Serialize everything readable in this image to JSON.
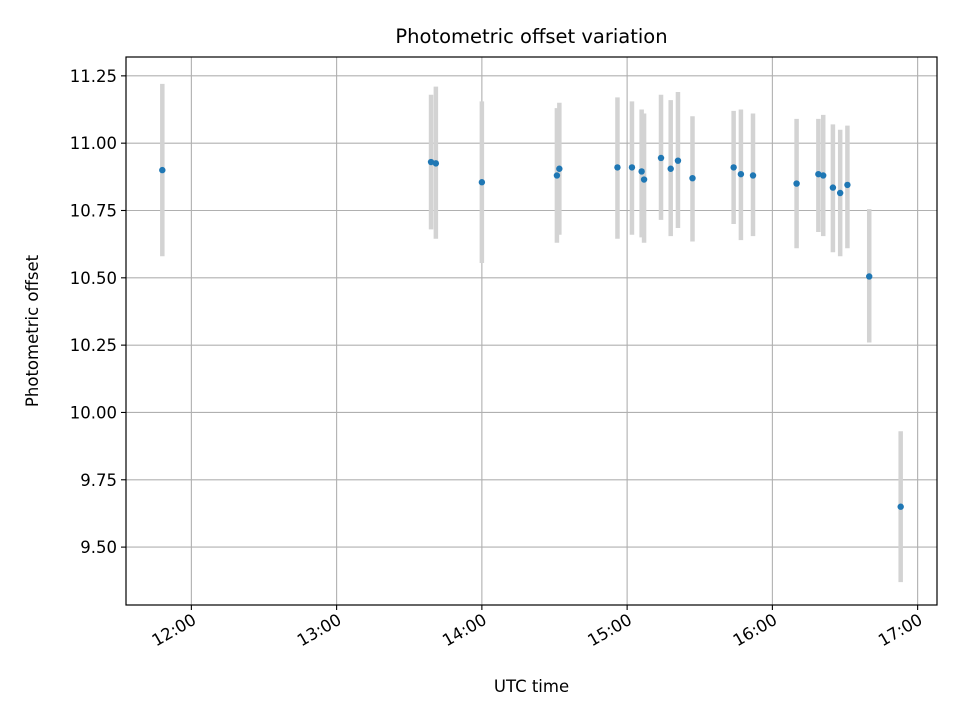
{
  "chart_data": {
    "type": "scatter",
    "title": "Photometric offset variation",
    "xlabel": "UTC time",
    "ylabel": "Photometric offset",
    "x_axis": {
      "type": "time",
      "range": [
        "11:33",
        "17:08"
      ],
      "ticks": [
        "12:00",
        "13:00",
        "14:00",
        "15:00",
        "16:00",
        "17:00"
      ]
    },
    "y_axis": {
      "range": [
        9.285,
        11.32
      ],
      "ticks": [
        "9.50",
        "9.75",
        "10.00",
        "10.25",
        "10.50",
        "10.75",
        "11.00",
        "11.25"
      ]
    },
    "grid": true,
    "colors": {
      "point": "#1f77b4",
      "error_bar": "#d3d3d3",
      "grid": "#b0b0b0"
    },
    "series": [
      {
        "points": [
          {
            "x": "11:48",
            "y": 10.9,
            "y_low": 10.58,
            "y_high": 11.22
          },
          {
            "x": "13:39",
            "y": 10.93,
            "y_low": 10.68,
            "y_high": 11.18
          },
          {
            "x": "13:41",
            "y": 10.925,
            "y_low": 10.645,
            "y_high": 11.21
          },
          {
            "x": "14:00",
            "y": 10.855,
            "y_low": 10.555,
            "y_high": 11.155
          },
          {
            "x": "14:31",
            "y": 10.88,
            "y_low": 10.63,
            "y_high": 11.13
          },
          {
            "x": "14:32",
            "y": 10.905,
            "y_low": 10.66,
            "y_high": 11.15
          },
          {
            "x": "14:56",
            "y": 10.91,
            "y_low": 10.645,
            "y_high": 11.17
          },
          {
            "x": "15:02",
            "y": 10.91,
            "y_low": 10.66,
            "y_high": 11.155
          },
          {
            "x": "15:06",
            "y": 10.895,
            "y_low": 10.65,
            "y_high": 11.125
          },
          {
            "x": "15:07",
            "y": 10.865,
            "y_low": 10.63,
            "y_high": 11.11
          },
          {
            "x": "15:14",
            "y": 10.945,
            "y_low": 10.715,
            "y_high": 11.18
          },
          {
            "x": "15:18",
            "y": 10.905,
            "y_low": 10.655,
            "y_high": 11.16
          },
          {
            "x": "15:21",
            "y": 10.935,
            "y_low": 10.685,
            "y_high": 11.19
          },
          {
            "x": "15:27",
            "y": 10.87,
            "y_low": 10.635,
            "y_high": 11.1
          },
          {
            "x": "15:44",
            "y": 10.91,
            "y_low": 10.7,
            "y_high": 11.12
          },
          {
            "x": "15:47",
            "y": 10.885,
            "y_low": 10.64,
            "y_high": 11.125
          },
          {
            "x": "15:52",
            "y": 10.88,
            "y_low": 10.655,
            "y_high": 11.11
          },
          {
            "x": "16:10",
            "y": 10.85,
            "y_low": 10.61,
            "y_high": 11.09
          },
          {
            "x": "16:19",
            "y": 10.885,
            "y_low": 10.67,
            "y_high": 11.09
          },
          {
            "x": "16:21",
            "y": 10.88,
            "y_low": 10.655,
            "y_high": 11.105
          },
          {
            "x": "16:25",
            "y": 10.835,
            "y_low": 10.595,
            "y_high": 11.07
          },
          {
            "x": "16:28",
            "y": 10.815,
            "y_low": 10.58,
            "y_high": 11.05
          },
          {
            "x": "16:31",
            "y": 10.845,
            "y_low": 10.61,
            "y_high": 11.065
          },
          {
            "x": "16:40",
            "y": 10.505,
            "y_low": 10.26,
            "y_high": 10.755
          },
          {
            "x": "16:53",
            "y": 9.65,
            "y_low": 9.37,
            "y_high": 9.93
          }
        ]
      }
    ]
  }
}
